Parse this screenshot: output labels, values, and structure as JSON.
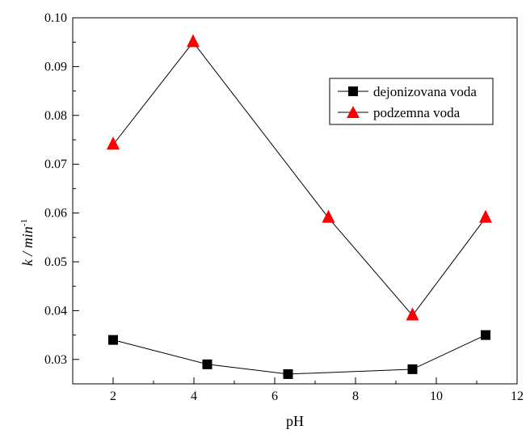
{
  "chart_data": {
    "type": "line",
    "xlabel": "pH",
    "ylabel": "k / min",
    "ylabel_sup": "-1",
    "xlim": [
      1,
      12
    ],
    "ylim": [
      0.025,
      0.1
    ],
    "xticks": [
      2,
      4,
      6,
      8,
      10,
      12
    ],
    "xtick_labels": [
      "2",
      "4",
      "6",
      "8",
      "10",
      "12"
    ],
    "yticks": [
      0.03,
      0.04,
      0.05,
      0.06,
      0.07,
      0.08,
      0.09,
      0.1
    ],
    "ytick_labels": [
      "0.03",
      "0.04",
      "0.05",
      "0.06",
      "0.07",
      "0.08",
      "0.09",
      "0.10"
    ],
    "grid": false,
    "legend_position": "top-right",
    "series": [
      {
        "name": "dejonizovana voda",
        "marker": "square",
        "color": "#000000",
        "points": [
          {
            "x": 2.0,
            "y": 0.034
          },
          {
            "x": 4.33,
            "y": 0.029
          },
          {
            "x": 6.33,
            "y": 0.027
          },
          {
            "x": 9.41,
            "y": 0.028
          },
          {
            "x": 11.22,
            "y": 0.035
          }
        ]
      },
      {
        "name": "podzemna voda",
        "marker": "triangle",
        "color": "#ff0000",
        "points": [
          {
            "x": 2.0,
            "y": 0.074
          },
          {
            "x": 3.98,
            "y": 0.095
          },
          {
            "x": 7.33,
            "y": 0.059
          },
          {
            "x": 9.41,
            "y": 0.039
          },
          {
            "x": 11.22,
            "y": 0.059
          }
        ]
      }
    ]
  }
}
